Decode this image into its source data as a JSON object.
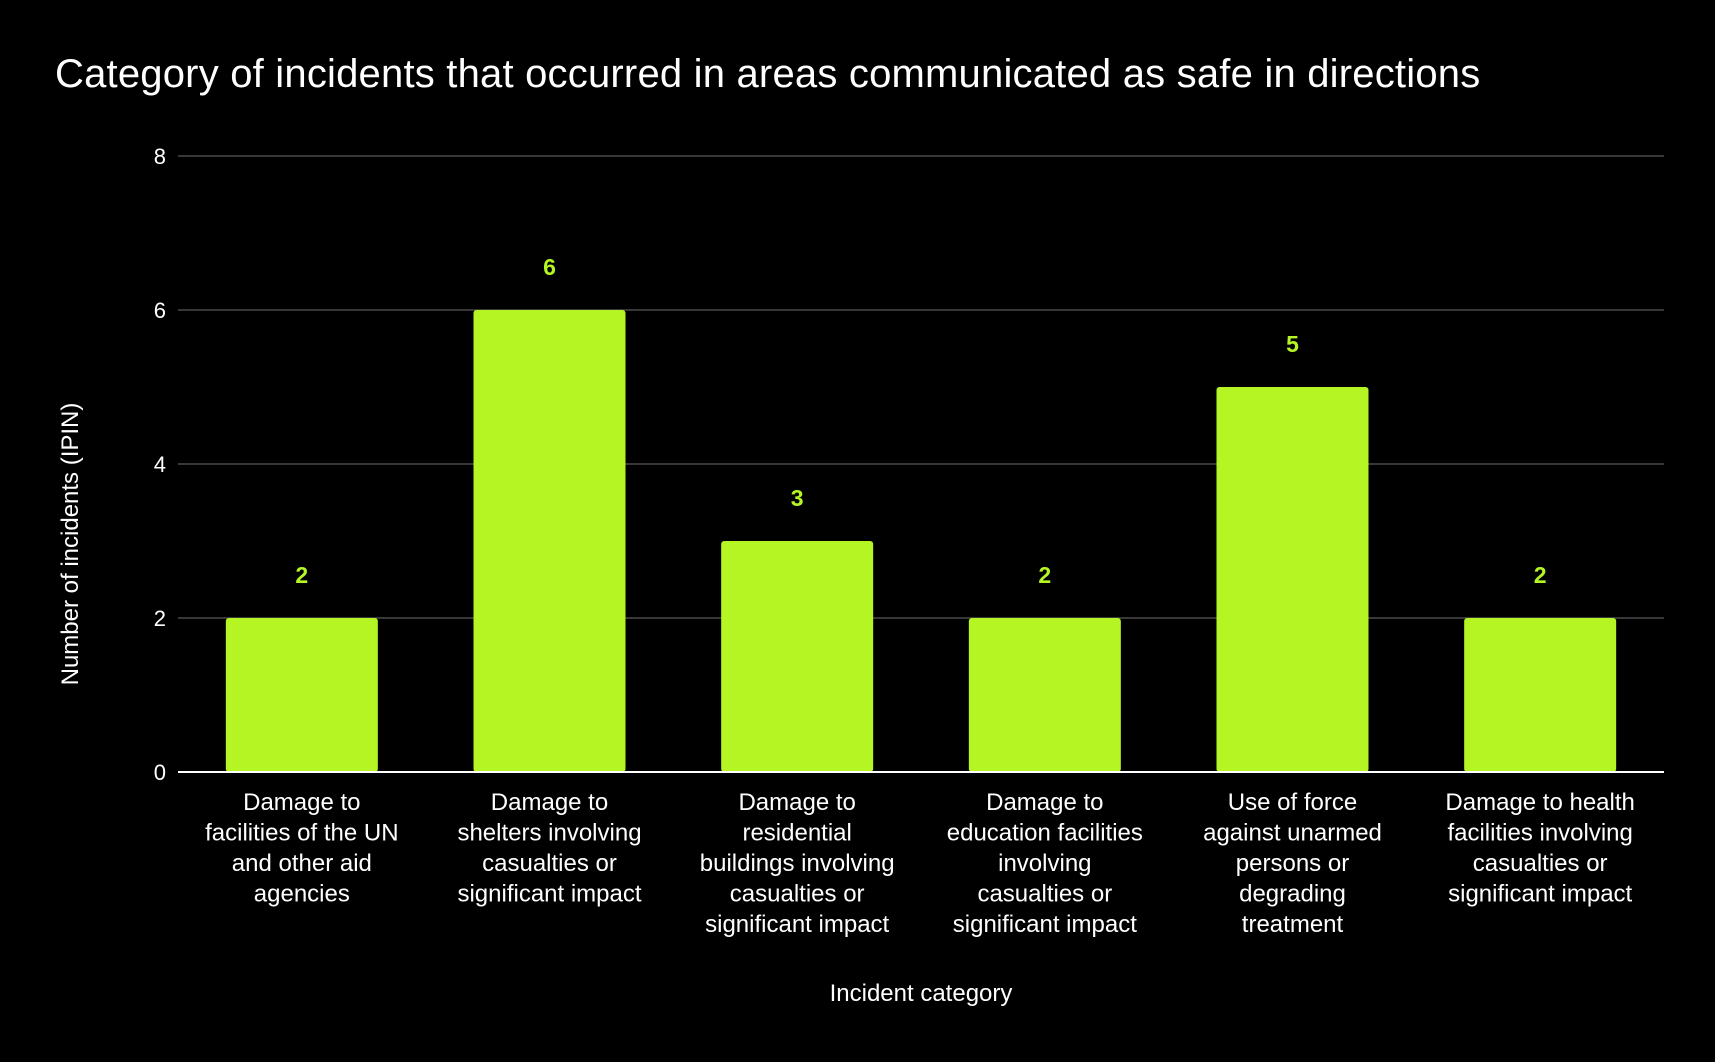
{
  "chart_data": {
    "type": "bar",
    "title": "Category of incidents that occurred in areas communicated as safe in directions",
    "xlabel": "Incident category",
    "ylabel": "Number of incidents (IPIN)",
    "ylim": [
      0,
      8
    ],
    "yticks": [
      0,
      2,
      4,
      6,
      8
    ],
    "grid": true,
    "legend": "none",
    "bar_color": "#b5f523",
    "label_color": "#b5f523",
    "categories": [
      [
        "Damage to",
        "facilities of the UN",
        "and other aid",
        "agencies"
      ],
      [
        "Damage to",
        "shelters involving",
        "casualties or",
        "significant impact"
      ],
      [
        "Damage to",
        "residential",
        "buildings involving",
        "casualties or",
        "significant impact"
      ],
      [
        "Damage to",
        "education facilities",
        "involving",
        "casualties or",
        "significant impact"
      ],
      [
        "Use of force",
        "against unarmed",
        "persons or",
        "degrading",
        "treatment"
      ],
      [
        "Damage to health",
        "facilities involving",
        "casualties or",
        "significant impact"
      ]
    ],
    "values": [
      2,
      6,
      3,
      2,
      5,
      2
    ]
  }
}
